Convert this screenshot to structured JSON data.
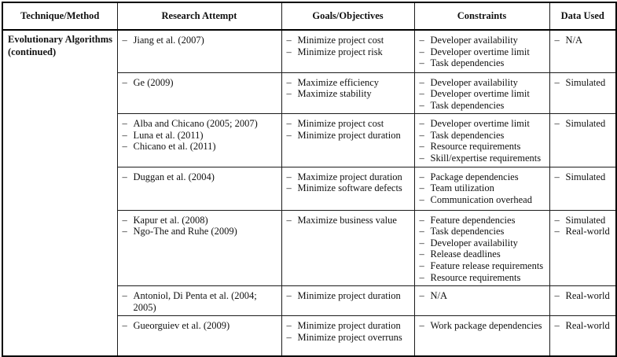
{
  "list_marker": "–",
  "header": [
    "Technique/Method",
    "Research Attempt",
    "Goals/Objectives",
    "Constraints",
    "Data Used"
  ],
  "technique": "Evolutionary Algorithms (continued)",
  "rows": [
    {
      "research_attempt": [
        "Jiang et al. (2007)"
      ],
      "goals_objectives": [
        "Minimize project cost",
        "Minimize project risk"
      ],
      "constraints": [
        "Developer availability",
        "Developer overtime limit",
        "Task dependencies"
      ],
      "data_used": [
        "N/A"
      ]
    },
    {
      "research_attempt": [
        "Ge (2009)"
      ],
      "goals_objectives": [
        "Maximize efficiency",
        "Maximize stability"
      ],
      "constraints": [
        "Developer availability",
        "Developer overtime limit",
        "Task dependencies"
      ],
      "data_used": [
        "Simulated"
      ]
    },
    {
      "research_attempt": [
        "Alba and Chicano (2005; 2007)",
        "Luna et al. (2011)",
        "Chicano et al. (2011)"
      ],
      "goals_objectives": [
        "Minimize project cost",
        "Minimize project duration"
      ],
      "constraints": [
        "Developer overtime limit",
        "Task dependencies",
        "Resource requirements",
        "Skill/expertise requirements"
      ],
      "data_used": [
        "Simulated"
      ]
    },
    {
      "research_attempt": [
        "Duggan et al. (2004)"
      ],
      "goals_objectives": [
        "Maximize project duration",
        "Minimize software defects"
      ],
      "constraints": [
        "Package dependencies",
        "Team utilization",
        "Communication overhead"
      ],
      "data_used": [
        "Simulated"
      ]
    },
    {
      "research_attempt": [
        "Kapur et al. (2008)",
        "Ngo-The and Ruhe (2009)"
      ],
      "goals_objectives": [
        "Maximize business value"
      ],
      "constraints": [
        "Feature dependencies",
        "Task dependencies",
        "Developer availability",
        "Release deadlines",
        "Feature release requirements",
        "Resource requirements"
      ],
      "data_used": [
        "Simulated",
        "Real-world"
      ]
    },
    {
      "research_attempt": [
        "Antoniol, Di Penta et al. (2004; 2005)"
      ],
      "goals_objectives": [
        "Minimize project duration"
      ],
      "constraints": [
        "N/A"
      ],
      "data_used": [
        "Real-world"
      ]
    },
    {
      "research_attempt": [
        "Gueorguiev et al. (2009)"
      ],
      "goals_objectives": [
        "Minimize project duration",
        "Minimize project overruns"
      ],
      "constraints": [
        "Work package dependencies"
      ],
      "data_used": [
        "Real-world"
      ]
    }
  ]
}
